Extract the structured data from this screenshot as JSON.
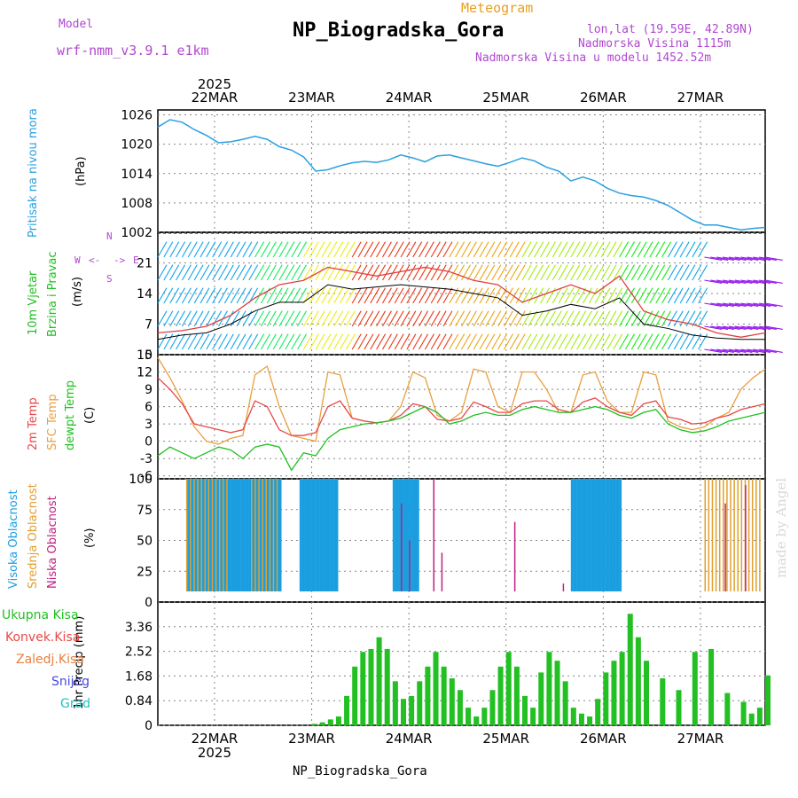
{
  "header": {
    "model_label": "Model",
    "model_value": "wrf-nmm_v3.9.1 e1km",
    "product": "Meteogram",
    "station": "NP_Biogradska_Gora",
    "coords": "lon,lat (19.59E, 42.89N)",
    "altitude": "Nadmorska Visina 1115m",
    "model_altitude": "Nadmorska Visina u modelu 1452.52m",
    "signature": "made by Angel",
    "footer": "NP_Biogradska_Gora"
  },
  "colors": {
    "pressure": "#2aa0e0",
    "wind_speed": "#000000",
    "wind_gust": "#e04040",
    "temp_2m": "#e84848",
    "temp_sfc": "#e8a040",
    "dewpoint": "#20c020",
    "cloud_high": "#1a9ee0",
    "cloud_mid": "#e0a030",
    "cloud_low": "#c02080",
    "precip": "#22c022"
  },
  "chart_data": [
    {
      "type": "line",
      "panel": "pressure",
      "ylabel_1": "Pritisak na nivou mora",
      "ylabel_2": "(hPa)",
      "yticks": [
        "1026",
        "1020",
        "1014",
        "1008",
        "1002"
      ],
      "ylim": [
        1002,
        1027
      ],
      "x_hours": [
        0,
        3,
        6,
        9,
        12,
        15,
        18,
        21,
        24,
        27,
        30,
        33,
        36,
        39,
        42,
        45,
        48,
        51,
        54,
        57,
        60,
        63,
        66,
        69,
        72,
        75,
        78,
        81,
        84,
        87,
        90,
        93,
        96,
        99,
        102,
        105,
        108,
        111,
        114,
        117,
        120,
        123,
        126,
        129,
        132,
        135,
        138,
        141,
        144,
        147,
        150
      ],
      "values": [
        1023.5,
        1025,
        1024.5,
        1023,
        1021.8,
        1020.3,
        1020.5,
        1021,
        1021.6,
        1021,
        1019.5,
        1018.8,
        1017.4,
        1014.5,
        1014.8,
        1015.6,
        1016.2,
        1016.5,
        1016.3,
        1016.8,
        1017.8,
        1017.2,
        1016.4,
        1017.6,
        1017.8,
        1017.2,
        1016.6,
        1016,
        1015.5,
        1016.3,
        1017.2,
        1016.6,
        1015.3,
        1014.5,
        1012.5,
        1013.3,
        1012.5,
        1011,
        1010,
        1009.5,
        1009.2,
        1008.5,
        1007.5,
        1006,
        1004.5,
        1003.5,
        1003.5,
        1003,
        1002.5,
        1002.8,
        1003
      ]
    },
    {
      "type": "line",
      "panel": "wind",
      "ylabel_1": "10m Vjetar",
      "ylabel_2": "Brzina i Pravac",
      "ylabel_3": "(m/s)",
      "compass": [
        "N",
        "S",
        "E",
        "W",
        "<-",
        "->"
      ],
      "yticks": [
        "21",
        "14",
        "7",
        "0"
      ],
      "ylim": [
        0,
        28
      ],
      "x_hours": [
        0,
        6,
        12,
        18,
        24,
        30,
        36,
        42,
        48,
        54,
        60,
        66,
        72,
        78,
        84,
        90,
        96,
        102,
        108,
        114,
        120,
        126,
        132,
        138,
        144,
        150
      ],
      "series": [
        {
          "name": "speed",
          "values": [
            3.5,
            4.5,
            5,
            7,
            10,
            12,
            12,
            16,
            15,
            15.5,
            16,
            15.5,
            15,
            14,
            13,
            9,
            10,
            11.5,
            10.5,
            13,
            7,
            6,
            4.5,
            3.8,
            3.5,
            3.5
          ]
        },
        {
          "name": "gust",
          "values": [
            5,
            5.5,
            6.5,
            9,
            13,
            16,
            17,
            20,
            19,
            18,
            19,
            20,
            19,
            17,
            16,
            12,
            14,
            16,
            14,
            18,
            10,
            8,
            7,
            5,
            4,
            5
          ]
        }
      ]
    },
    {
      "type": "line",
      "panel": "temperature",
      "ylabel_1": "2m Temp",
      "ylabel_2": "SFC Temp",
      "ylabel_3": "dewpt Temp",
      "ylabel_4": "(C)",
      "yticks": [
        "15",
        "12",
        "9",
        "6",
        "3",
        "0",
        "-3",
        "-6"
      ],
      "ylim": [
        -6.5,
        15
      ],
      "x_hours": [
        0,
        3,
        6,
        9,
        12,
        15,
        18,
        21,
        24,
        27,
        30,
        33,
        36,
        39,
        42,
        45,
        48,
        51,
        54,
        57,
        60,
        63,
        66,
        69,
        72,
        75,
        78,
        81,
        84,
        87,
        90,
        93,
        96,
        99,
        102,
        105,
        108,
        111,
        114,
        117,
        120,
        123,
        126,
        129,
        132,
        135,
        138,
        141,
        144,
        147,
        150
      ],
      "series": [
        {
          "name": "2m Temp",
          "values": [
            11,
            9,
            6.5,
            3,
            2.5,
            2,
            1.5,
            2,
            7,
            6,
            2,
            1,
            1,
            1.5,
            6,
            7,
            4,
            3.5,
            3.2,
            3.5,
            4.5,
            6.5,
            6,
            3.8,
            3.5,
            4,
            6.8,
            6,
            5,
            5,
            6.5,
            7,
            7,
            5.5,
            5,
            6.8,
            7.5,
            6,
            5,
            4.5,
            6.5,
            7,
            4.2,
            3.8,
            3,
            3.2,
            4,
            4.5,
            5.5,
            6,
            6.5
          ]
        },
        {
          "name": "SFC Temp",
          "values": [
            14.5,
            11,
            7,
            2.5,
            0,
            -0.5,
            0.5,
            1,
            11.5,
            13,
            6,
            1,
            0.5,
            0,
            12,
            11.5,
            4,
            3.5,
            3.2,
            3.5,
            6,
            12,
            11,
            4.5,
            3.5,
            5,
            12.5,
            12,
            6,
            5,
            12,
            12,
            9,
            5,
            5,
            11.5,
            12,
            7,
            5,
            5,
            12,
            11.5,
            3.5,
            2.5,
            2,
            2.5,
            4,
            5,
            9,
            11,
            12.5
          ]
        },
        {
          "name": "dewpt Temp",
          "values": [
            -2.5,
            -1,
            -2,
            -3,
            -2,
            -1,
            -1.5,
            -3,
            -1,
            -0.5,
            -1,
            -5,
            -2,
            -2.5,
            0.5,
            2,
            2.5,
            3,
            3.2,
            3.5,
            4,
            5,
            6,
            5,
            3,
            3.5,
            4.5,
            5,
            4.5,
            4.5,
            5.5,
            6,
            5.5,
            5,
            5,
            5.5,
            6,
            5.5,
            4.5,
            4,
            5,
            5.5,
            3,
            2,
            1.5,
            1.8,
            2.5,
            3.5,
            4,
            4.5,
            5
          ]
        }
      ]
    },
    {
      "type": "bar",
      "panel": "cloud",
      "ylabel_1": "Visoka Oblacnost",
      "ylabel_2": "Srednja Oblacnost",
      "ylabel_3": "Niska Oblacnost",
      "ylabel_4": "(%)",
      "yticks": [
        "100",
        "75",
        "50",
        "25",
        "0"
      ],
      "ylim": [
        0,
        100
      ],
      "series": [
        {
          "name": "Visoka Oblacnost",
          "spans_hours": [
            [
              7,
              30
            ],
            [
              35,
              44
            ],
            [
              58,
              64
            ],
            [
              102,
              114
            ]
          ],
          "value": 100
        },
        {
          "name": "Srednja Oblacnost",
          "spans_hours": [
            [
              7,
              17
            ],
            [
              23,
              30
            ],
            [
              135,
              149
            ]
          ],
          "value": 100
        },
        {
          "name": "Niska Oblacnost",
          "points": [
            [
              60,
              80
            ],
            [
              62,
              50
            ],
            [
              68,
              100
            ],
            [
              70,
              40
            ],
            [
              88,
              65
            ],
            [
              100,
              15
            ],
            [
              140,
              80
            ],
            [
              145,
              95
            ]
          ]
        }
      ]
    },
    {
      "type": "bar",
      "panel": "precip",
      "legend": [
        "Ukupna Kisa",
        "Konvek.Kisa",
        "Zaledj.Kisa",
        "Snijeg",
        "Grad"
      ],
      "ylabel_1": "1hr Precip (mm)",
      "yticks": [
        "3.36",
        "2.52",
        "1.68",
        "0.84",
        "0"
      ],
      "ylim": [
        0,
        4.2
      ],
      "x_hours": [
        38,
        40,
        42,
        44,
        46,
        48,
        50,
        52,
        54,
        56,
        58,
        60,
        62,
        64,
        66,
        68,
        70,
        72,
        74,
        76,
        78,
        80,
        82,
        84,
        86,
        88,
        90,
        92,
        94,
        96,
        98,
        100,
        102,
        104,
        106,
        108,
        110,
        112,
        114,
        116,
        118,
        120,
        124,
        128,
        132,
        136,
        140,
        144,
        146,
        148,
        150
      ],
      "values": [
        0.05,
        0.1,
        0.2,
        0.3,
        1,
        2,
        2.5,
        2.6,
        3,
        2.6,
        1.5,
        0.9,
        1,
        1.5,
        2,
        2.5,
        2,
        1.6,
        1.2,
        0.6,
        0.3,
        0.6,
        1.2,
        2,
        2.5,
        2,
        1,
        0.6,
        1.8,
        2.5,
        2.2,
        1.5,
        0.6,
        0.4,
        0.3,
        0.9,
        1.8,
        2.2,
        2.5,
        3.8,
        3,
        2.2,
        1.6,
        1.2,
        2.5,
        2.6,
        1.1,
        0.8,
        0.4,
        0.6,
        1.7
      ]
    }
  ],
  "x_axis": {
    "year": "2025",
    "dates": [
      "22MAR",
      "23MAR",
      "24MAR",
      "25MAR",
      "26MAR",
      "27MAR"
    ]
  }
}
